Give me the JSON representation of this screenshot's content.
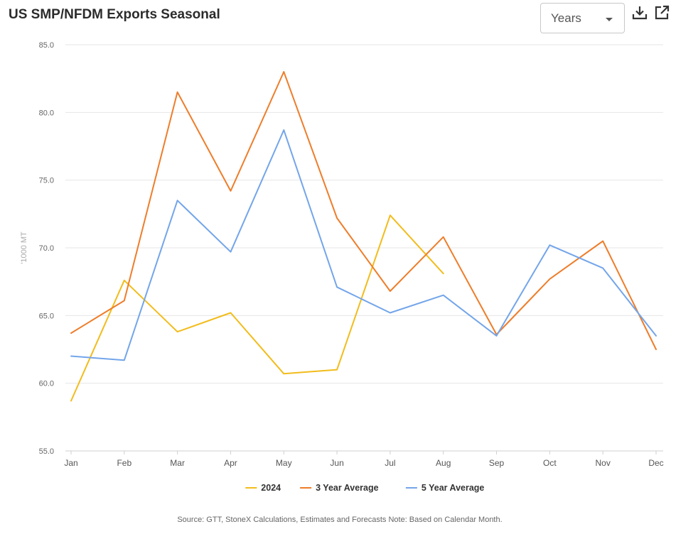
{
  "header": {
    "title": "US SMP/NFDM Exports Seasonal",
    "period_select_value": "Years"
  },
  "icons": {
    "download": "download-icon",
    "open_external": "open-external-icon"
  },
  "footer": {
    "source": "Source: GTT, StoneX Calculations, Estimates and Forecasts  Note: Based on Calendar Month."
  },
  "chart_data": {
    "type": "line",
    "title": "US SMP/NFDM Exports Seasonal",
    "ylabel": "'1000 MT",
    "xlabel": "",
    "categories": [
      "Jan",
      "Feb",
      "Mar",
      "Apr",
      "May",
      "Jun",
      "Jul",
      "Aug",
      "Sep",
      "Oct",
      "Nov",
      "Dec"
    ],
    "ylim": [
      55,
      85
    ],
    "yticks": [
      "55.0",
      "60.0",
      "65.0",
      "70.0",
      "75.0",
      "80.0",
      "85.0"
    ],
    "grid": true,
    "legend_position": "bottom",
    "series": [
      {
        "name": "2024",
        "color": "#F2BC1B",
        "values": [
          58.7,
          67.6,
          63.8,
          65.2,
          60.7,
          61.0,
          72.4,
          68.1,
          null,
          null,
          null,
          null
        ]
      },
      {
        "name": "3 Year Average",
        "color": "#EE7D2A",
        "values": [
          63.7,
          66.1,
          81.5,
          74.2,
          83.0,
          72.2,
          66.8,
          70.8,
          63.6,
          67.7,
          70.5,
          62.5
        ]
      },
      {
        "name": "5 Year Average",
        "color": "#73A5EA",
        "values": [
          62.0,
          61.7,
          73.5,
          69.7,
          78.7,
          67.1,
          65.2,
          66.5,
          63.5,
          70.2,
          68.5,
          63.5
        ]
      }
    ]
  }
}
